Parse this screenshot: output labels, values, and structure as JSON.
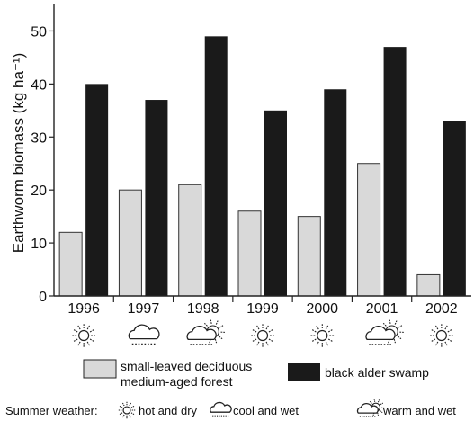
{
  "chart_data": {
    "type": "bar",
    "categories": [
      "1996",
      "1997",
      "1998",
      "1999",
      "2000",
      "2001",
      "2002"
    ],
    "series": [
      {
        "name": "small-leaved deciduous medium-aged forest",
        "color": "#d9d9d9",
        "values": [
          12,
          20,
          21,
          16,
          15,
          25,
          4
        ]
      },
      {
        "name": "black alder swamp",
        "color": "#1a1a1a",
        "values": [
          40,
          37,
          49,
          35,
          39,
          47,
          33
        ]
      }
    ],
    "ylabel": "Earthworm biomass (kg ha⁻¹)",
    "ylim": [
      0,
      55
    ],
    "yticks": [
      0,
      10,
      20,
      30,
      40,
      50
    ],
    "grid": false,
    "legend_position": "bottom",
    "weather_icons": [
      "sun-icon",
      "cloud-rain-icon",
      "cloud-sun-rain-icon",
      "sun-icon",
      "sun-icon",
      "cloud-sun-rain-icon",
      "sun-icon"
    ]
  },
  "legend": {
    "series1_line1": "small-leaved deciduous",
    "series1_line2": "medium-aged forest",
    "series2": "black alder swamp"
  },
  "weather_note": {
    "prefix": "Summer weather:",
    "hot_dry": "hot and dry",
    "cool_wet": "cool and wet",
    "warm_wet": "warm and wet"
  }
}
